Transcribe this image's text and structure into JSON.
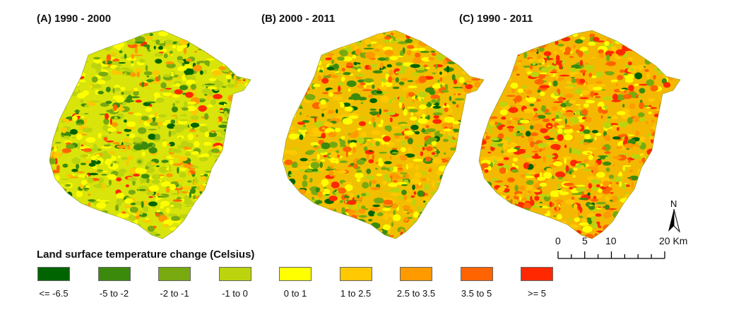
{
  "panels": [
    {
      "title": "(A) 1990 - 2000"
    },
    {
      "title": "(B) 2000 - 2011"
    },
    {
      "title": "(C) 1990 - 2011"
    }
  ],
  "legend": {
    "title": "Land surface temperature change (Celsius)",
    "classes": [
      {
        "label": "<= -6.5",
        "color": "#006400"
      },
      {
        "label": "-5 to -2",
        "color": "#3c8a0c"
      },
      {
        "label": "-2 to -1",
        "color": "#78aa10"
      },
      {
        "label": "-1 to 0",
        "color": "#bcd40e"
      },
      {
        "label": "0 to 1",
        "color": "#ffff00"
      },
      {
        "label": "1 to 2.5",
        "color": "#ffc800"
      },
      {
        "label": "2.5 to 3.5",
        "color": "#ff9a00"
      },
      {
        "label": "3.5 to 5",
        "color": "#ff6400"
      },
      {
        "label": ">= 5",
        "color": "#ff2800"
      }
    ]
  },
  "scalebar": {
    "labels": [
      "0",
      "5",
      "10",
      "20 Km"
    ]
  },
  "north_arrow": {
    "label": "N"
  }
}
